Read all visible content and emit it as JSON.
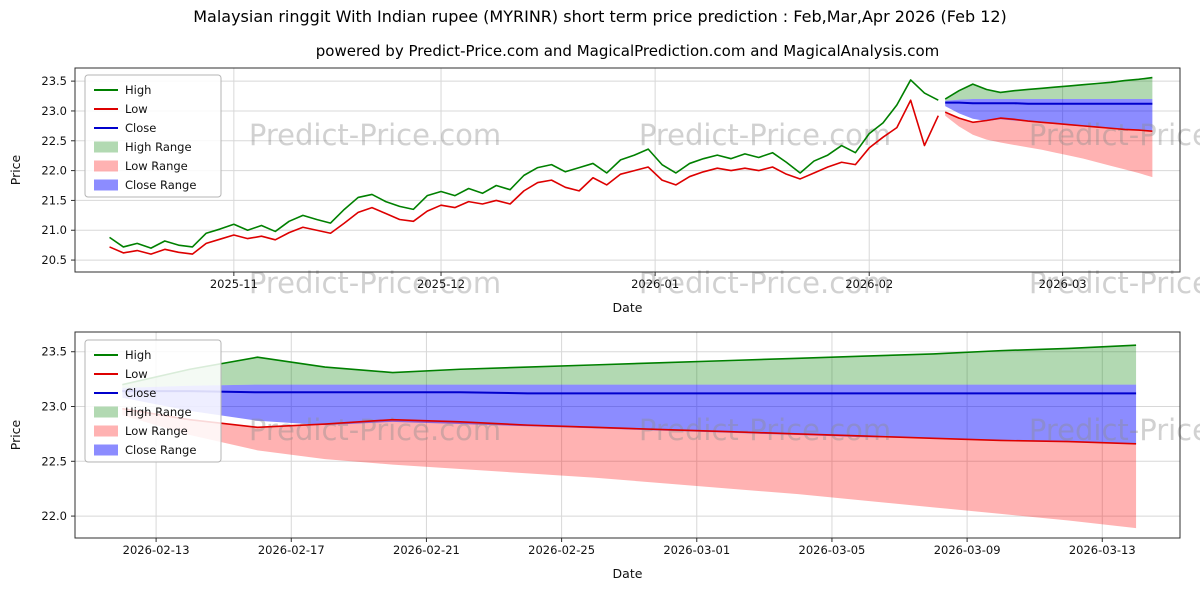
{
  "figure": {
    "title": "Malaysian ringgit With Indian rupee (MYRINR) short term price prediction : Feb,Mar,Apr 2026 (Feb 12)",
    "subtitle": "powered by Predict-Price.com and MagicalPrediction.com and MagicalAnalysis.com",
    "watermark_text": "Predict-Price.com"
  },
  "colors": {
    "high_line": "#008000",
    "low_line": "#dd0000",
    "close_line": "#0000cc",
    "high_range": "rgba(0,128,0,0.30)",
    "low_range": "rgba(255,0,0,0.30)",
    "close_range": "rgba(0,0,255,0.45)",
    "grid": "#d8d8d8",
    "spine": "#2f2f2f",
    "watermark": "rgba(140,140,140,0.40)"
  },
  "legend_labels": [
    "High",
    "Low",
    "Close",
    "High Range",
    "Low Range",
    "Close Range"
  ],
  "chart_data": [
    {
      "type": "line",
      "name": "history-and-forecast",
      "xlabel": "Date",
      "ylabel": "Price",
      "ylim": [
        20.3,
        23.72
      ],
      "xlim": [
        -5,
        155
      ],
      "yticks": [
        20.5,
        21.0,
        21.5,
        22.0,
        22.5,
        23.0,
        23.5
      ],
      "xticks": [
        {
          "d": 18,
          "label": "2025-11"
        },
        {
          "d": 48,
          "label": "2025-12"
        },
        {
          "d": 79,
          "label": "2026-01"
        },
        {
          "d": 110,
          "label": "2026-02"
        },
        {
          "d": 138,
          "label": "2026-03"
        }
      ],
      "history": {
        "days_start": 0,
        "days_step": 2,
        "high": [
          20.88,
          20.72,
          20.78,
          20.7,
          20.82,
          20.75,
          20.72,
          20.95,
          21.02,
          21.1,
          21.0,
          21.08,
          20.98,
          21.15,
          21.25,
          21.18,
          21.12,
          21.35,
          21.55,
          21.6,
          21.48,
          21.4,
          21.35,
          21.58,
          21.65,
          21.58,
          21.7,
          21.62,
          21.75,
          21.68,
          21.92,
          22.05,
          22.1,
          21.98,
          22.05,
          22.12,
          21.96,
          22.18,
          22.26,
          22.36,
          22.1,
          21.96,
          22.12,
          22.2,
          22.26,
          22.2,
          22.28,
          22.22,
          22.3,
          22.14,
          21.96,
          22.16,
          22.26,
          22.42,
          22.3,
          22.62,
          22.8,
          23.1,
          23.52,
          23.3,
          23.18
        ],
        "low": [
          20.72,
          20.62,
          20.66,
          20.6,
          20.68,
          20.63,
          20.6,
          20.78,
          20.85,
          20.92,
          20.86,
          20.9,
          20.84,
          20.96,
          21.05,
          21.0,
          20.95,
          21.12,
          21.3,
          21.38,
          21.28,
          21.18,
          21.15,
          21.32,
          21.42,
          21.38,
          21.48,
          21.44,
          21.5,
          21.44,
          21.66,
          21.8,
          21.84,
          21.72,
          21.66,
          21.88,
          21.76,
          21.94,
          22.0,
          22.06,
          21.84,
          21.76,
          21.9,
          21.98,
          22.04,
          22.0,
          22.04,
          22.0,
          22.06,
          21.94,
          21.86,
          21.96,
          22.06,
          22.14,
          22.1,
          22.38,
          22.56,
          22.72,
          23.18,
          22.42,
          22.92
        ]
      },
      "forecast": {
        "days": [
          121,
          123,
          125,
          127,
          129,
          131,
          133,
          135,
          137,
          139,
          141,
          143,
          145,
          147,
          149,
          151
        ],
        "close": [
          23.14,
          23.14,
          23.13,
          23.13,
          23.13,
          23.13,
          23.12,
          23.12,
          23.12,
          23.12,
          23.12,
          23.12,
          23.12,
          23.12,
          23.12,
          23.12
        ],
        "high_top": [
          23.2,
          23.34,
          23.45,
          23.36,
          23.31,
          23.34,
          23.36,
          23.38,
          23.4,
          23.42,
          23.44,
          23.46,
          23.48,
          23.51,
          23.53,
          23.56
        ],
        "close_top": [
          23.17,
          23.19,
          23.2,
          23.2,
          23.2,
          23.2,
          23.2,
          23.2,
          23.2,
          23.2,
          23.2,
          23.2,
          23.2,
          23.2,
          23.2,
          23.2
        ],
        "close_bottom": [
          23.08,
          22.96,
          22.87,
          22.83,
          22.86,
          22.84,
          22.82,
          22.8,
          22.78,
          22.76,
          22.74,
          22.72,
          22.71,
          22.69,
          22.68,
          22.66
        ],
        "low_top": [
          22.98,
          22.88,
          22.81,
          22.84,
          22.88,
          22.86,
          22.83,
          22.81,
          22.79,
          22.77,
          22.75,
          22.73,
          22.71,
          22.69,
          22.68,
          22.66
        ],
        "low_bottom": [
          22.92,
          22.74,
          22.6,
          22.52,
          22.47,
          22.43,
          22.39,
          22.35,
          22.3,
          22.25,
          22.2,
          22.14,
          22.08,
          22.02,
          21.96,
          21.89
        ]
      }
    },
    {
      "type": "line",
      "name": "forecast-detail",
      "xlabel": "Date",
      "ylabel": "Price",
      "ylim": [
        21.8,
        23.68
      ],
      "xlim": [
        119.6,
        152.3
      ],
      "yticks": [
        22.0,
        22.5,
        23.0,
        23.5
      ],
      "xticks": [
        {
          "d": 122,
          "label": "2026-02-13"
        },
        {
          "d": 126,
          "label": "2026-02-17"
        },
        {
          "d": 130,
          "label": "2026-02-21"
        },
        {
          "d": 134,
          "label": "2026-02-25"
        },
        {
          "d": 138,
          "label": "2026-03-01"
        },
        {
          "d": 142,
          "label": "2026-03-05"
        },
        {
          "d": 146,
          "label": "2026-03-09"
        },
        {
          "d": 150,
          "label": "2026-03-13"
        }
      ],
      "forecast": {
        "days": [
          121,
          123,
          125,
          127,
          129,
          131,
          133,
          135,
          137,
          139,
          141,
          143,
          145,
          147,
          149,
          151
        ],
        "close": [
          23.14,
          23.14,
          23.13,
          23.13,
          23.13,
          23.13,
          23.12,
          23.12,
          23.12,
          23.12,
          23.12,
          23.12,
          23.12,
          23.12,
          23.12,
          23.12
        ],
        "high_top": [
          23.2,
          23.34,
          23.45,
          23.36,
          23.31,
          23.34,
          23.36,
          23.38,
          23.4,
          23.42,
          23.44,
          23.46,
          23.48,
          23.51,
          23.53,
          23.56
        ],
        "close_top": [
          23.17,
          23.19,
          23.2,
          23.2,
          23.2,
          23.2,
          23.2,
          23.2,
          23.2,
          23.2,
          23.2,
          23.2,
          23.2,
          23.2,
          23.2,
          23.2
        ],
        "close_bottom": [
          23.08,
          22.96,
          22.87,
          22.83,
          22.86,
          22.84,
          22.82,
          22.8,
          22.78,
          22.76,
          22.74,
          22.72,
          22.71,
          22.69,
          22.68,
          22.66
        ],
        "low_top": [
          22.98,
          22.88,
          22.81,
          22.84,
          22.88,
          22.86,
          22.83,
          22.81,
          22.79,
          22.77,
          22.75,
          22.73,
          22.71,
          22.69,
          22.68,
          22.66
        ],
        "low_bottom": [
          22.92,
          22.74,
          22.6,
          22.52,
          22.47,
          22.43,
          22.39,
          22.35,
          22.3,
          22.25,
          22.2,
          22.14,
          22.08,
          22.02,
          21.96,
          21.89
        ]
      }
    }
  ]
}
